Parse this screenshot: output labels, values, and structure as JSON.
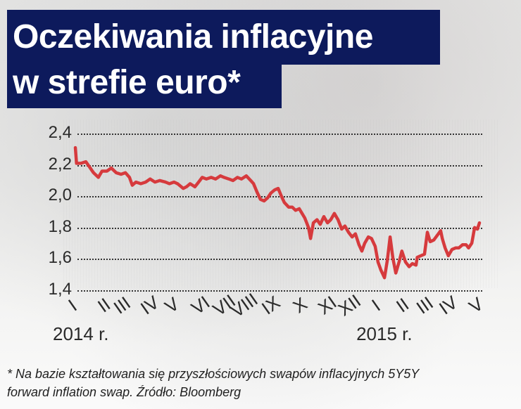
{
  "title": {
    "line1": "Oczekiwania inflacyjne",
    "line2": "w strefie euro*",
    "box_color": "#0d1a5c"
  },
  "footnote": {
    "line1": "* Na bazie kształtowania się przyszłościowych swapów inflacyjnych 5Y5Y",
    "line2": "forward inflation swap. Źródło: Bloomberg"
  },
  "colors": {
    "line": "#d63a3d",
    "text": "#2a2a2a"
  },
  "chart_data": {
    "type": "line",
    "title": "Oczekiwania inflacyjne w strefie euro*",
    "xlabel": "",
    "ylabel": "",
    "ylim": [
      1.4,
      2.4
    ],
    "yticks": [
      "2,4",
      "2,2",
      "2,0",
      "1,8",
      "1,6",
      "1,4"
    ],
    "ytick_values": [
      2.4,
      2.2,
      2.0,
      1.8,
      1.6,
      1.4
    ],
    "grid": "horizontal dotted",
    "legend": null,
    "x_tick_labels": [
      "I",
      "II",
      "III",
      "IV",
      "V",
      "VI",
      "VII",
      "VIII",
      "IX",
      "X",
      "XI",
      "XII",
      "I",
      "II",
      "III",
      "IV",
      "V"
    ],
    "x_tick_positions": [
      0.0,
      0.071,
      0.11,
      0.176,
      0.237,
      0.301,
      0.354,
      0.397,
      0.476,
      0.554,
      0.615,
      0.664,
      0.751,
      0.81,
      0.859,
      0.915,
      0.99
    ],
    "year_labels": [
      {
        "label": "2014 r.",
        "position": 0.0
      },
      {
        "label": "2015 r.",
        "position": 0.751
      }
    ],
    "series": [
      {
        "name": "5Y5Y forward inflation swap",
        "color": "#d63a3d",
        "x": [
          0.0,
          0.003,
          0.014,
          0.026,
          0.037,
          0.045,
          0.057,
          0.066,
          0.078,
          0.089,
          0.101,
          0.113,
          0.124,
          0.134,
          0.141,
          0.15,
          0.162,
          0.174,
          0.185,
          0.197,
          0.209,
          0.223,
          0.233,
          0.244,
          0.253,
          0.267,
          0.275,
          0.284,
          0.296,
          0.305,
          0.314,
          0.324,
          0.336,
          0.347,
          0.359,
          0.368,
          0.38,
          0.39,
          0.401,
          0.411,
          0.423,
          0.434,
          0.441,
          0.449,
          0.458,
          0.467,
          0.476,
          0.484,
          0.493,
          0.502,
          0.51,
          0.517,
          0.528,
          0.537,
          0.545,
          0.554,
          0.561,
          0.568,
          0.577,
          0.582,
          0.589,
          0.598,
          0.606,
          0.615,
          0.624,
          0.632,
          0.641,
          0.65,
          0.659,
          0.667,
          0.676,
          0.685,
          0.693,
          0.702,
          0.709,
          0.716,
          0.725,
          0.733,
          0.742,
          0.749,
          0.756,
          0.765,
          0.772,
          0.779,
          0.786,
          0.793,
          0.801,
          0.808,
          0.817,
          0.826,
          0.834,
          0.843,
          0.846,
          0.864,
          0.871,
          0.878,
          0.887,
          0.904,
          0.908,
          0.915,
          0.923,
          0.932,
          0.941,
          0.949,
          0.958,
          0.967,
          0.973,
          0.981,
          0.988,
          0.995,
          1.0
        ],
        "values": [
          2.31,
          2.21,
          2.21,
          2.22,
          2.18,
          2.15,
          2.12,
          2.16,
          2.16,
          2.18,
          2.15,
          2.14,
          2.15,
          2.12,
          2.07,
          2.09,
          2.08,
          2.09,
          2.11,
          2.09,
          2.1,
          2.09,
          2.08,
          2.09,
          2.08,
          2.05,
          2.06,
          2.08,
          2.06,
          2.09,
          2.12,
          2.11,
          2.12,
          2.11,
          2.13,
          2.12,
          2.11,
          2.1,
          2.12,
          2.11,
          2.13,
          2.1,
          2.08,
          2.03,
          1.98,
          1.97,
          1.99,
          2.02,
          2.04,
          2.05,
          2.0,
          1.96,
          1.93,
          1.93,
          1.91,
          1.92,
          1.89,
          1.86,
          1.8,
          1.73,
          1.83,
          1.85,
          1.82,
          1.87,
          1.83,
          1.85,
          1.89,
          1.85,
          1.79,
          1.81,
          1.77,
          1.74,
          1.76,
          1.69,
          1.65,
          1.7,
          1.74,
          1.73,
          1.68,
          1.58,
          1.53,
          1.48,
          1.59,
          1.74,
          1.6,
          1.51,
          1.58,
          1.65,
          1.58,
          1.55,
          1.57,
          1.56,
          1.61,
          1.63,
          1.77,
          1.71,
          1.72,
          1.78,
          1.73,
          1.67,
          1.62,
          1.66,
          1.67,
          1.67,
          1.69,
          1.69,
          1.67,
          1.7,
          1.8,
          1.79,
          1.83
        ]
      }
    ]
  }
}
